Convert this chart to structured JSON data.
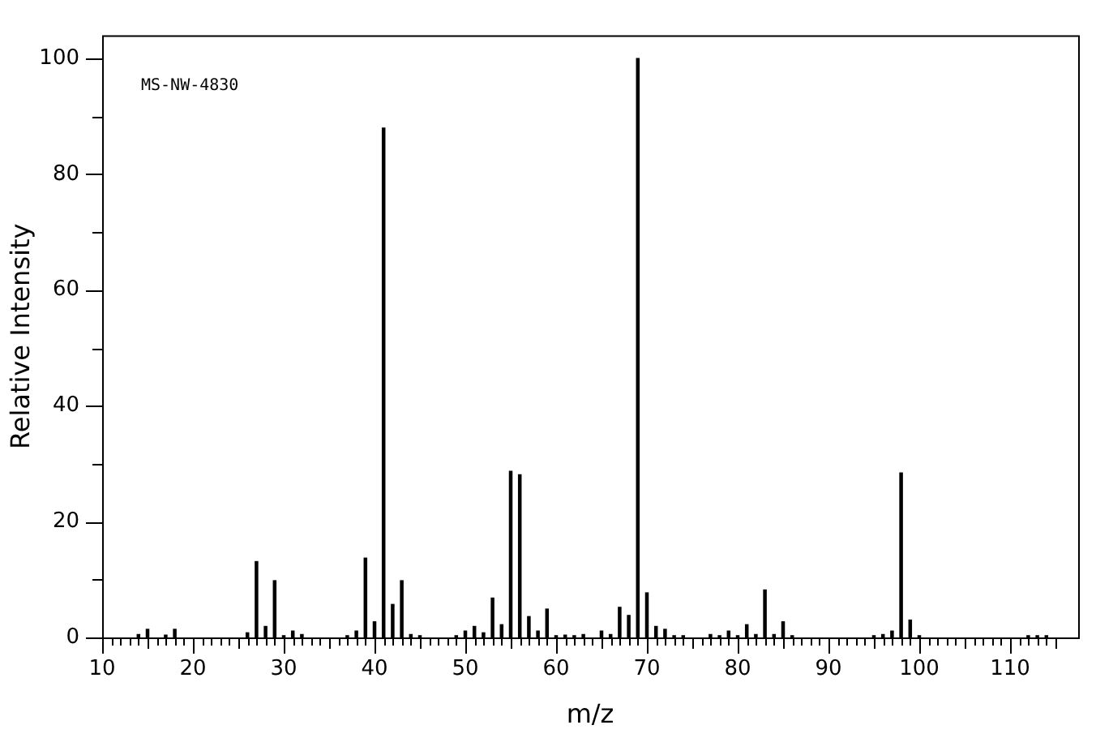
{
  "chart_data": {
    "type": "bar",
    "xlabel": "m/z",
    "ylabel": "Relative Intensity",
    "annotations": [
      "MS-NW-4830"
    ],
    "x": [
      14,
      15,
      17,
      18,
      26,
      27,
      28,
      29,
      30,
      31,
      32,
      37,
      38,
      39,
      40,
      41,
      42,
      43,
      44,
      45,
      49,
      50,
      51,
      52,
      53,
      54,
      55,
      56,
      57,
      58,
      59,
      60,
      61,
      62,
      63,
      65,
      66,
      67,
      68,
      69,
      70,
      71,
      72,
      73,
      74,
      77,
      78,
      79,
      80,
      81,
      82,
      83,
      84,
      85,
      86,
      95,
      96,
      97,
      98,
      99,
      100,
      112,
      113,
      114
    ],
    "values": [
      0.5,
      1.4,
      0.4,
      1.4,
      0.8,
      13.1,
      1.9,
      9.8,
      0.3,
      1.1,
      0.5,
      0.3,
      1.1,
      13.7,
      2.7,
      88,
      5.7,
      9.8,
      0.5,
      0.3,
      0.3,
      1.1,
      1.9,
      0.8,
      6.8,
      2.2,
      28.7,
      28.1,
      3.6,
      1.1,
      4.9,
      0.3,
      0.4,
      0.3,
      0.5,
      1.1,
      0.5,
      5.2,
      3.8,
      100,
      7.7,
      1.9,
      1.4,
      0.3,
      0.3,
      0.5,
      0.3,
      1.1,
      0.3,
      2.2,
      0.5,
      8.2,
      0.5,
      2.7,
      0.3,
      0.3,
      0.5,
      1.1,
      28.4,
      3.0,
      0.3,
      0.3,
      0.3,
      0.3
    ],
    "color": "#000000",
    "xlim": [
      10,
      117.5
    ],
    "xticks": [
      10,
      {
        "value": 11,
        "label": null
      },
      {
        "value": 12,
        "label": null
      },
      {
        "value": 13,
        "label": null
      },
      {
        "value": 14,
        "label": null
      },
      {
        "value": 15,
        "label": null
      },
      {
        "value": 16,
        "label": null
      },
      {
        "value": 17,
        "label": null
      },
      {
        "value": 18,
        "label": null
      },
      {
        "value": 19,
        "label": null
      },
      20,
      {
        "value": 21,
        "label": null
      },
      {
        "value": 22,
        "label": null
      },
      {
        "value": 23,
        "label": null
      },
      {
        "value": 24,
        "label": null
      },
      {
        "value": 25,
        "label": null
      },
      {
        "value": 26,
        "label": null
      },
      {
        "value": 27,
        "label": null
      },
      {
        "value": 28,
        "label": null
      },
      {
        "value": 29,
        "label": null
      },
      30,
      {
        "value": 31,
        "label": null
      },
      {
        "value": 32,
        "label": null
      },
      {
        "value": 33,
        "label": null
      },
      {
        "value": 34,
        "label": null
      },
      {
        "value": 35,
        "label": null
      },
      {
        "value": 36,
        "label": null
      },
      {
        "value": 37,
        "label": null
      },
      {
        "value": 38,
        "label": null
      },
      {
        "value": 39,
        "label": null
      },
      40,
      {
        "value": 41,
        "label": null
      },
      {
        "value": 42,
        "label": null
      },
      {
        "value": 43,
        "label": null
      },
      {
        "value": 44,
        "label": null
      },
      {
        "value": 45,
        "label": null
      },
      {
        "value": 46,
        "label": null
      },
      {
        "value": 47,
        "label": null
      },
      {
        "value": 48,
        "label": null
      },
      {
        "value": 49,
        "label": null
      },
      50,
      {
        "value": 51,
        "label": null
      },
      {
        "value": 52,
        "label": null
      },
      {
        "value": 53,
        "label": null
      },
      {
        "value": 54,
        "label": null
      },
      {
        "value": 55,
        "label": null
      },
      {
        "value": 56,
        "label": null
      },
      {
        "value": 57,
        "label": null
      },
      {
        "value": 58,
        "label": null
      },
      {
        "value": 59,
        "label": null
      },
      60,
      {
        "value": 61,
        "label": null
      },
      {
        "value": 62,
        "label": null
      },
      {
        "value": 63,
        "label": null
      },
      {
        "value": 64,
        "label": null
      },
      {
        "value": 65,
        "label": null
      },
      {
        "value": 66,
        "label": null
      },
      {
        "value": 67,
        "label": null
      },
      {
        "value": 68,
        "label": null
      },
      {
        "value": 69,
        "label": null
      },
      70,
      {
        "value": 71,
        "label": null
      },
      {
        "value": 72,
        "label": null
      },
      {
        "value": 73,
        "label": null
      },
      {
        "value": 74,
        "label": null
      },
      {
        "value": 75,
        "label": null
      },
      {
        "value": 76,
        "label": null
      },
      {
        "value": 77,
        "label": null
      },
      {
        "value": 78,
        "label": null
      },
      {
        "value": 79,
        "label": null
      },
      80,
      {
        "value": 81,
        "label": null
      },
      {
        "value": 82,
        "label": null
      },
      {
        "value": 83,
        "label": null
      },
      {
        "value": 84,
        "label": null
      },
      {
        "value": 85,
        "label": null
      },
      {
        "value": 86,
        "label": null
      },
      {
        "value": 87,
        "label": null
      },
      {
        "value": 88,
        "label": null
      },
      {
        "value": 89,
        "label": null
      },
      90,
      {
        "value": 91,
        "label": null
      },
      {
        "value": 92,
        "label": null
      },
      {
        "value": 93,
        "label": null
      },
      {
        "value": 94,
        "label": null
      },
      {
        "value": 95,
        "label": null
      },
      {
        "value": 96,
        "label": null
      },
      {
        "value": 97,
        "label": null
      },
      {
        "value": 98,
        "label": null
      },
      {
        "value": 99,
        "label": null
      },
      100,
      {
        "value": 101,
        "label": null
      },
      {
        "value": 102,
        "label": null
      },
      {
        "value": 103,
        "label": null
      },
      {
        "value": 104,
        "label": null
      },
      {
        "value": 105,
        "label": null
      },
      {
        "value": 106,
        "label": null
      },
      {
        "value": 107,
        "label": null
      },
      {
        "value": 108,
        "label": null
      },
      {
        "value": 109,
        "label": null
      },
      110,
      {
        "value": 111,
        "label": null
      },
      {
        "value": 112,
        "label": null
      },
      {
        "value": 113,
        "label": null
      },
      {
        "value": 114,
        "label": null
      },
      {
        "value": 115,
        "label": null
      }
    ],
    "ylim": [
      0,
      104
    ],
    "yticks": [
      0,
      {
        "value": 10,
        "label": null
      },
      20,
      {
        "value": 30,
        "label": null
      },
      40,
      {
        "value": 50,
        "label": null
      },
      60,
      {
        "value": 70,
        "label": null
      },
      80,
      {
        "value": 90,
        "label": null
      },
      100
    ],
    "legend": false
  }
}
